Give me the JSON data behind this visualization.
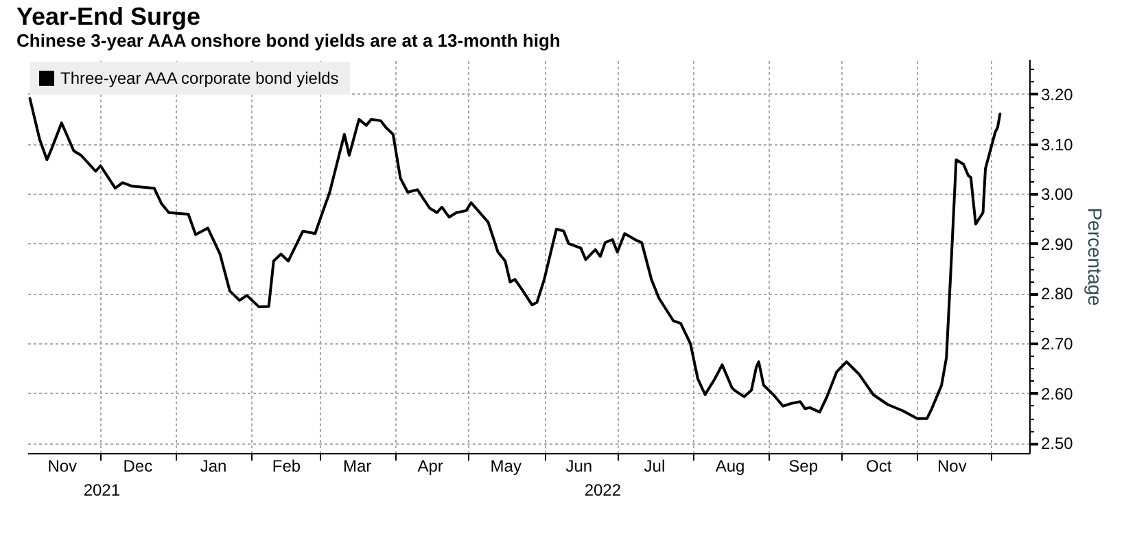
{
  "chart_data": {
    "type": "line",
    "title": "Year-End Surge",
    "subtitle": "Chinese 3-year AAA onshore bond yields are at a 13-month high",
    "ylabel": "Percentage",
    "x": [
      "2021-11-02",
      "2021-11-06",
      "2021-11-09",
      "2021-11-11",
      "2021-11-15",
      "2021-11-20",
      "2021-11-23",
      "2021-11-29",
      "2021-12-01",
      "2021-12-07",
      "2021-12-10",
      "2021-12-14",
      "2021-12-23",
      "2021-12-26",
      "2021-12-29",
      "2022-01-06",
      "2022-01-09",
      "2022-01-14",
      "2022-01-19",
      "2022-01-23",
      "2022-01-27",
      "2022-01-30",
      "2022-02-04",
      "2022-02-08",
      "2022-02-10",
      "2022-02-13",
      "2022-02-16",
      "2022-02-22",
      "2022-02-27",
      "2022-03-01",
      "2022-03-05",
      "2022-03-11",
      "2022-03-13",
      "2022-03-17",
      "2022-03-20",
      "2022-03-22",
      "2022-03-24",
      "2022-03-26",
      "2022-03-28",
      "2022-03-31",
      "2022-04-03",
      "2022-04-06",
      "2022-04-10",
      "2022-04-15",
      "2022-04-18",
      "2022-04-20",
      "2022-04-23",
      "2022-04-26",
      "2022-04-30",
      "2022-05-02",
      "2022-05-09",
      "2022-05-13",
      "2022-05-16",
      "2022-05-18",
      "2022-05-20",
      "2022-05-23",
      "2022-05-27",
      "2022-05-29",
      "2022-06-01",
      "2022-06-06",
      "2022-06-09",
      "2022-06-11",
      "2022-06-16",
      "2022-06-18",
      "2022-06-22",
      "2022-06-24",
      "2022-06-26",
      "2022-06-29",
      "2022-07-01",
      "2022-07-04",
      "2022-07-09",
      "2022-07-11",
      "2022-07-15",
      "2022-07-18",
      "2022-07-24",
      "2022-07-27",
      "2022-07-31",
      "2022-08-03",
      "2022-08-06",
      "2022-08-10",
      "2022-08-13",
      "2022-08-17",
      "2022-08-18",
      "2022-08-22",
      "2022-08-25",
      "2022-08-27",
      "2022-08-28",
      "2022-08-30",
      "2022-09-03",
      "2022-09-07",
      "2022-09-10",
      "2022-09-14",
      "2022-09-16",
      "2022-09-18",
      "2022-09-22",
      "2022-09-25",
      "2022-09-29",
      "2022-10-03",
      "2022-10-08",
      "2022-10-14",
      "2022-10-20",
      "2022-10-26",
      "2022-11-01",
      "2022-11-05",
      "2022-11-07",
      "2022-11-11",
      "2022-11-13",
      "2022-11-15",
      "2022-11-17",
      "2022-11-20",
      "2022-11-22",
      "2022-11-23",
      "2022-11-25",
      "2022-11-28",
      "2022-11-29",
      "2022-12-03",
      "2022-12-04",
      "2022-12-05"
    ],
    "series": [
      {
        "name": "Three-year AAA corporate bond yields",
        "color": "#000000",
        "values": [
          3.191,
          3.109,
          3.068,
          3.091,
          3.142,
          3.086,
          3.077,
          3.045,
          3.056,
          3.011,
          3.022,
          3.015,
          3.011,
          2.98,
          2.962,
          2.959,
          2.918,
          2.931,
          2.879,
          2.805,
          2.786,
          2.796,
          2.773,
          2.774,
          2.865,
          2.879,
          2.865,
          2.925,
          2.92,
          2.948,
          3.003,
          3.119,
          3.077,
          3.149,
          3.137,
          3.149,
          3.148,
          3.146,
          3.133,
          3.119,
          3.031,
          3.003,
          3.008,
          2.971,
          2.962,
          2.973,
          2.953,
          2.962,
          2.966,
          2.982,
          2.943,
          2.883,
          2.865,
          2.823,
          2.828,
          2.807,
          2.777,
          2.782,
          2.828,
          2.929,
          2.925,
          2.9,
          2.891,
          2.868,
          2.888,
          2.874,
          2.902,
          2.908,
          2.883,
          2.92,
          2.906,
          2.902,
          2.828,
          2.791,
          2.745,
          2.74,
          2.699,
          2.629,
          2.597,
          2.629,
          2.657,
          2.611,
          2.606,
          2.593,
          2.606,
          2.652,
          2.663,
          2.616,
          2.597,
          2.574,
          2.579,
          2.583,
          2.569,
          2.571,
          2.562,
          2.593,
          2.643,
          2.663,
          2.639,
          2.597,
          2.577,
          2.565,
          2.549,
          2.549,
          2.569,
          2.616,
          2.671,
          2.865,
          3.068,
          3.059,
          3.036,
          3.033,
          2.939,
          2.962,
          3.05,
          3.123,
          3.133,
          3.16
        ]
      }
    ],
    "xlim": [
      "2021-11-01",
      "2022-12-17"
    ],
    "xticks": [
      {
        "value": "2021-11-15",
        "label": "Nov"
      },
      {
        "value": "2021-12-01",
        "label": null
      },
      {
        "value": "2021-12-16",
        "label": "Dec"
      },
      {
        "value": "2022-01-01",
        "label": null
      },
      {
        "value": "2022-01-16",
        "label": "Jan"
      },
      {
        "value": "2022-02-01",
        "label": null
      },
      {
        "value": "2022-02-15",
        "label": "Feb"
      },
      {
        "value": "2022-03-01",
        "label": null
      },
      {
        "value": "2022-03-16",
        "label": "Mar"
      },
      {
        "value": "2022-04-01",
        "label": null
      },
      {
        "value": "2022-04-15",
        "label": "Apr"
      },
      {
        "value": "2022-05-01",
        "label": null
      },
      {
        "value": "2022-05-16",
        "label": "May"
      },
      {
        "value": "2022-06-01",
        "label": null
      },
      {
        "value": "2022-06-15",
        "label": "Jun"
      },
      {
        "value": "2022-07-01",
        "label": null
      },
      {
        "value": "2022-07-16",
        "label": "Jul"
      },
      {
        "value": "2022-08-01",
        "label": null
      },
      {
        "value": "2022-08-16",
        "label": "Aug"
      },
      {
        "value": "2022-09-01",
        "label": null
      },
      {
        "value": "2022-09-15",
        "label": "Sep"
      },
      {
        "value": "2022-10-01",
        "label": null
      },
      {
        "value": "2022-10-16",
        "label": "Oct"
      },
      {
        "value": "2022-11-01",
        "label": null
      },
      {
        "value": "2022-11-15",
        "label": "Nov"
      },
      {
        "value": "2022-12-01",
        "label": null
      }
    ],
    "ylim": [
      2.48,
      3.27
    ],
    "yticks": [
      {
        "value": 2.5,
        "label": "2.50"
      },
      {
        "value": 2.525,
        "label": null
      },
      {
        "value": 2.55,
        "label": null
      },
      {
        "value": 2.575,
        "label": null
      },
      {
        "value": 2.6,
        "label": "2.60"
      },
      {
        "value": 2.625,
        "label": null
      },
      {
        "value": 2.65,
        "label": null
      },
      {
        "value": 2.675,
        "label": null
      },
      {
        "value": 2.7,
        "label": "2.70"
      },
      {
        "value": 2.725,
        "label": null
      },
      {
        "value": 2.75,
        "label": null
      },
      {
        "value": 2.775,
        "label": null
      },
      {
        "value": 2.8,
        "label": "2.80"
      },
      {
        "value": 2.825,
        "label": null
      },
      {
        "value": 2.85,
        "label": null
      },
      {
        "value": 2.875,
        "label": null
      },
      {
        "value": 2.9,
        "label": "2.90"
      },
      {
        "value": 2.925,
        "label": null
      },
      {
        "value": 2.95,
        "label": null
      },
      {
        "value": 2.975,
        "label": null
      },
      {
        "value": 3.0,
        "label": "3.00"
      },
      {
        "value": 3.025,
        "label": null
      },
      {
        "value": 3.05,
        "label": null
      },
      {
        "value": 3.075,
        "label": null
      },
      {
        "value": 3.1,
        "label": "3.10"
      },
      {
        "value": 3.125,
        "label": null
      },
      {
        "value": 3.15,
        "label": null
      },
      {
        "value": 3.175,
        "label": null
      },
      {
        "value": 3.2,
        "label": "3.20"
      },
      {
        "value": 3.225,
        "label": null
      },
      {
        "value": 3.25,
        "label": null
      }
    ],
    "annotations": [
      "2021",
      "2022"
    ],
    "grid": true,
    "legend": "top left"
  }
}
